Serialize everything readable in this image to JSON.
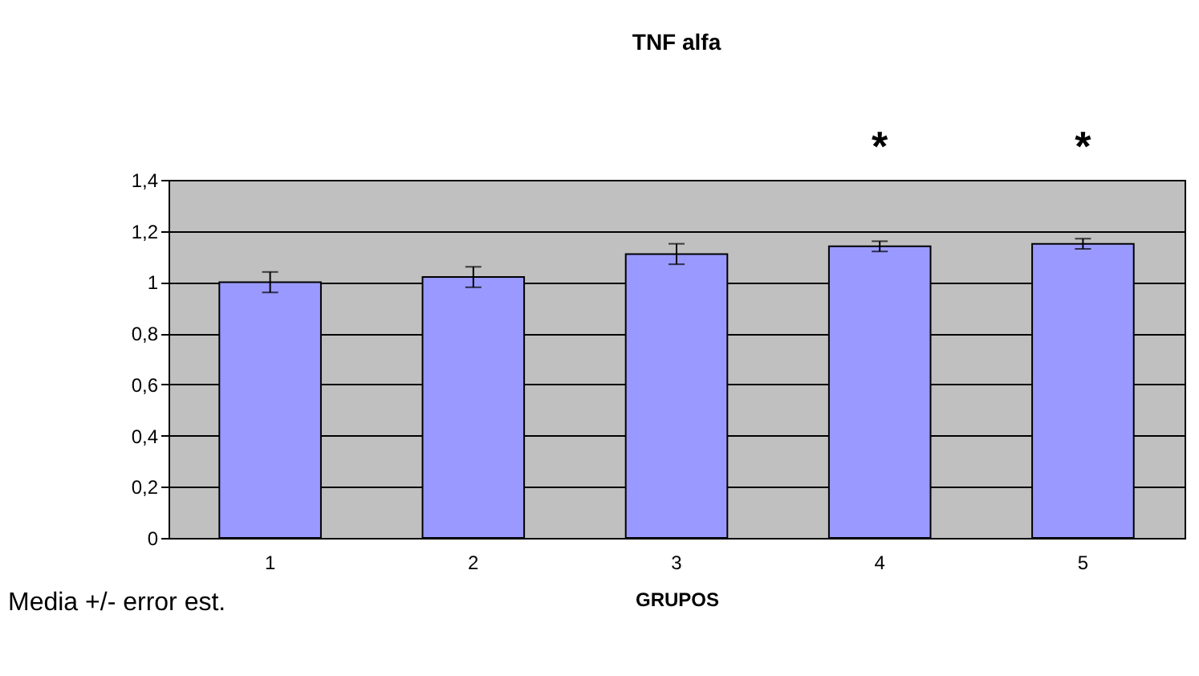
{
  "chart_data": {
    "type": "bar",
    "title": "TNF alfa",
    "xlabel": "GRUPOS",
    "categories": [
      "1",
      "2",
      "3",
      "4",
      "5"
    ],
    "values": [
      1.0,
      1.02,
      1.11,
      1.14,
      1.15
    ],
    "errors": [
      0.04,
      0.04,
      0.04,
      0.02,
      0.02
    ],
    "color": "#9999ff",
    "ylim": [
      0,
      1.4
    ],
    "yticks": [
      0,
      {
        "value": 0.2,
        "label": "0,2"
      },
      {
        "value": 0.4,
        "label": "0,4"
      },
      {
        "value": 0.6,
        "label": "0,6"
      },
      {
        "value": 0.8,
        "label": "0,8"
      },
      1,
      {
        "value": 1.2,
        "label": "1,2"
      },
      {
        "value": 1.4,
        "label": "1,4"
      }
    ],
    "grid": "y",
    "annotations": [
      "*",
      "*",
      "Media +/- error est."
    ]
  }
}
